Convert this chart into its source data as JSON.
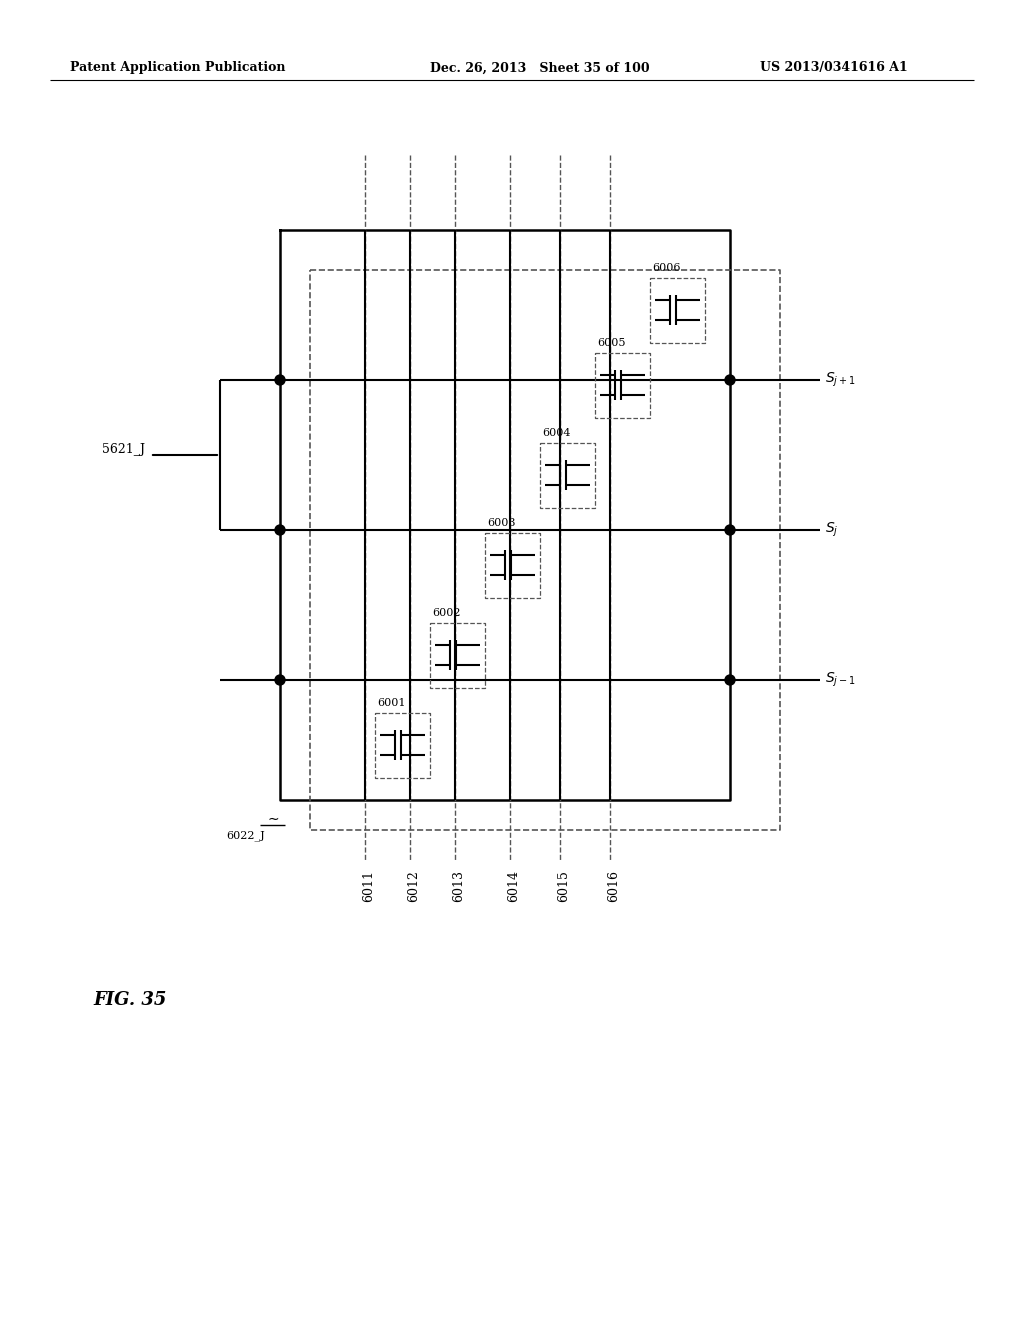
{
  "title_left": "Patent Application Publication",
  "title_mid": "Dec. 26, 2013  Sheet 35 of 100",
  "title_right": "US 2013/0341616 A1",
  "fig_label": "FIG. 35",
  "background": "#ffffff",
  "line_color": "#000000",
  "dashed_color": "#555555"
}
